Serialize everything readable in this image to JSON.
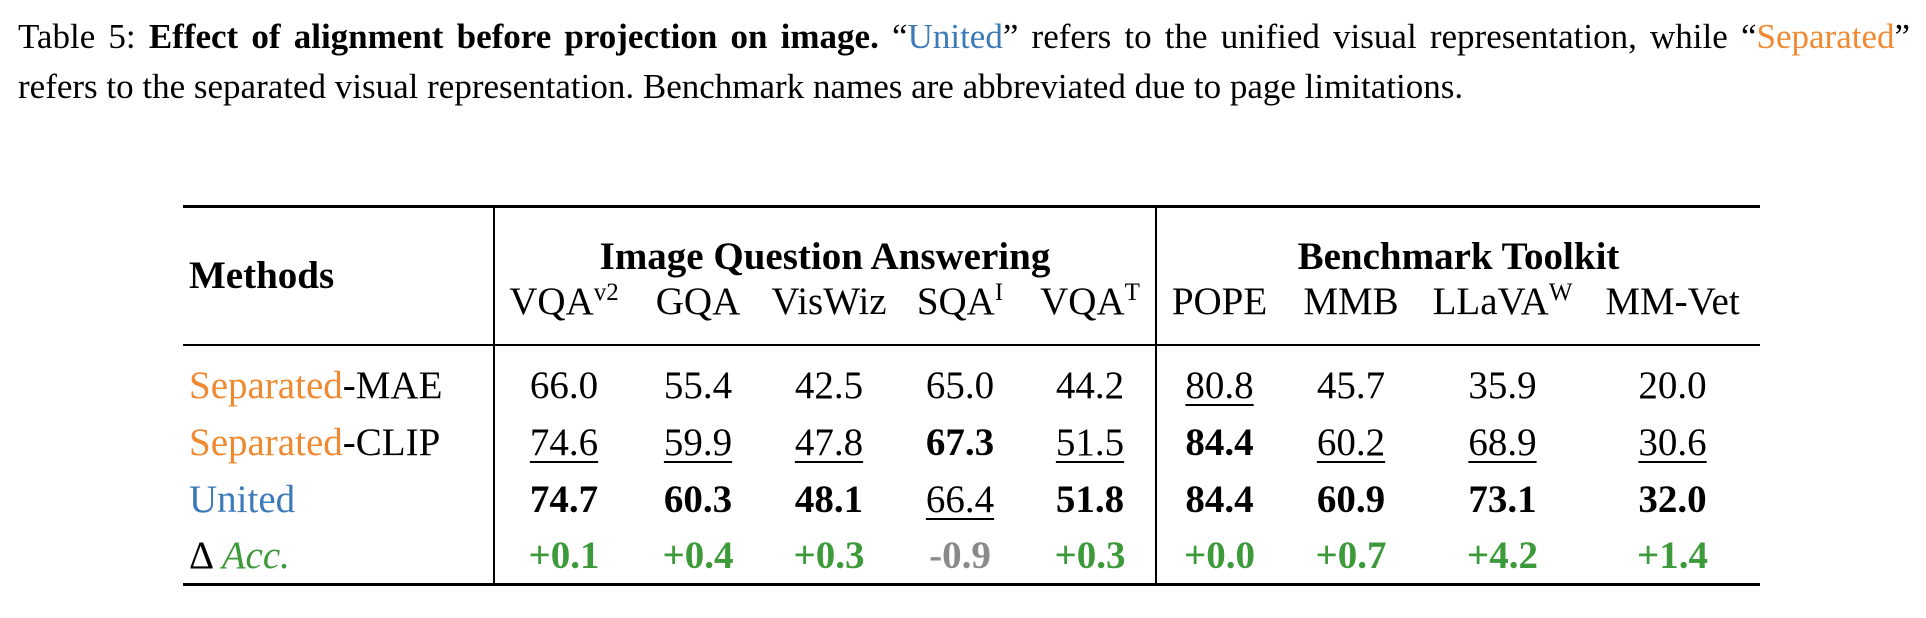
{
  "caption": {
    "label": "Table 5:",
    "title": "Effect of alignment before projection on image.",
    "segments": [
      {
        "text": "“"
      },
      {
        "text": "United",
        "color": "#3d7ab8"
      },
      {
        "text": "” refers to the unified visual representation, while “"
      },
      {
        "text": "Separated",
        "color": "#ef8a32"
      },
      {
        "text": "” refers to the separated visual representation. Benchmark names are abbreviated due to page limitations."
      }
    ]
  },
  "table": {
    "methods_header": "Methods",
    "groups": [
      {
        "label": "Image Question Answering",
        "span": 5
      },
      {
        "label": "Benchmark Toolkit",
        "span": 4
      }
    ],
    "columns": [
      {
        "name": "VQA",
        "sup": "v2"
      },
      {
        "name": "GQA"
      },
      {
        "name": "VisWiz"
      },
      {
        "name": "SQA",
        "sup": "I"
      },
      {
        "name": "VQA",
        "sup": "T"
      },
      {
        "name": "POPE"
      },
      {
        "name": "MMB"
      },
      {
        "name": "LLaVA",
        "sup": "W"
      },
      {
        "name": "MM-Vet"
      }
    ],
    "rows": [
      {
        "method": [
          {
            "text": "Separated",
            "color": "#ef8a32"
          },
          {
            "text": "-MAE"
          }
        ],
        "cells": [
          {
            "text": "66.0"
          },
          {
            "text": "55.4"
          },
          {
            "text": "42.5"
          },
          {
            "text": "65.0"
          },
          {
            "text": "44.2"
          },
          {
            "text": "80.8",
            "style": "underline"
          },
          {
            "text": "45.7"
          },
          {
            "text": "35.9"
          },
          {
            "text": "20.0"
          }
        ]
      },
      {
        "method": [
          {
            "text": "Separated",
            "color": "#ef8a32"
          },
          {
            "text": "-CLIP"
          }
        ],
        "cells": [
          {
            "text": "74.6",
            "style": "underline"
          },
          {
            "text": "59.9",
            "style": "underline"
          },
          {
            "text": "47.8",
            "style": "underline"
          },
          {
            "text": "67.3",
            "style": "bold"
          },
          {
            "text": "51.5",
            "style": "underline"
          },
          {
            "text": "84.4",
            "style": "bold"
          },
          {
            "text": "60.2",
            "style": "underline"
          },
          {
            "text": "68.9",
            "style": "underline"
          },
          {
            "text": "30.6",
            "style": "underline"
          }
        ]
      },
      {
        "method": [
          {
            "text": "United",
            "color": "#3d7ab8"
          }
        ],
        "cells": [
          {
            "text": "74.7",
            "style": "bold"
          },
          {
            "text": "60.3",
            "style": "bold"
          },
          {
            "text": "48.1",
            "style": "bold"
          },
          {
            "text": "66.4",
            "style": "underline"
          },
          {
            "text": "51.8",
            "style": "bold"
          },
          {
            "text": "84.4",
            "style": "bold"
          },
          {
            "text": "60.9",
            "style": "bold"
          },
          {
            "text": "73.1",
            "style": "bold"
          },
          {
            "text": "32.0",
            "style": "bold"
          }
        ]
      },
      {
        "method": [
          {
            "text": "Δ "
          },
          {
            "text": "Acc.",
            "color": "#3d9a3a",
            "style": "italic"
          }
        ],
        "cells": [
          {
            "text": "+0.1",
            "style": "bold",
            "color": "#3d9a3a"
          },
          {
            "text": "+0.4",
            "style": "bold",
            "color": "#3d9a3a"
          },
          {
            "text": "+0.3",
            "style": "bold",
            "color": "#3d9a3a"
          },
          {
            "text": "-0.9",
            "style": "bold",
            "color": "#8a8a8a"
          },
          {
            "text": "+0.3",
            "style": "bold",
            "color": "#3d9a3a"
          },
          {
            "text": "+0.0",
            "style": "bold",
            "color": "#3d9a3a"
          },
          {
            "text": "+0.7",
            "style": "bold",
            "color": "#3d9a3a"
          },
          {
            "text": "+4.2",
            "style": "bold",
            "color": "#3d9a3a"
          },
          {
            "text": "+1.4",
            "style": "bold",
            "color": "#3d9a3a"
          }
        ]
      }
    ]
  }
}
